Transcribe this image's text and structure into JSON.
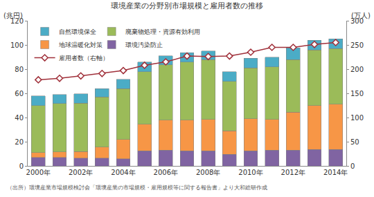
{
  "chart_data": {
    "type": "bar",
    "title": "環境産業の分野別市場規模と雇用者数の推移",
    "y_label": "(兆円)",
    "y2_label": "(万人)",
    "annotations": [
      "（出所）環境産業市場規模検討会「環境産業の市場規模・雇用規模等に関する報告書」より大和総研作成"
    ],
    "categories": [
      "2000年",
      null,
      "2002年",
      null,
      "2004年",
      null,
      "2006年",
      null,
      "2008年",
      null,
      "2010年",
      null,
      "2012年",
      null,
      "2014年"
    ],
    "stacked": true,
    "legend": "upper left",
    "grid": false,
    "series": [
      {
        "name": "環境汚染防止",
        "color": "#8064a2",
        "values": [
          7,
          7,
          6.5,
          6.5,
          6,
          12.5,
          13,
          12.5,
          12.5,
          9.5,
          12.5,
          13,
          13,
          13.5,
          13.5
        ]
      },
      {
        "name": "地球温暖化対策",
        "color": "#f79646",
        "values": [
          4,
          4.5,
          5.5,
          9,
          16,
          22,
          25,
          25.5,
          26,
          19.5,
          26.5,
          25.5,
          31.5,
          36.5,
          37.5
        ]
      },
      {
        "name": "廃棄物処理・資源有効利用",
        "color": "#9bbb59",
        "values": [
          39,
          40,
          40,
          41.5,
          42,
          43.5,
          45.5,
          48,
          49.5,
          41,
          42,
          43.5,
          43.5,
          46,
          46
        ]
      },
      {
        "name": "自然環境保全",
        "color": "#4bacc6",
        "values": [
          8,
          7.5,
          7.5,
          7,
          7.5,
          8,
          7.5,
          7.5,
          7,
          8,
          8,
          8,
          9.5,
          8,
          8
        ]
      },
      {
        "name": "雇用者数（右軸）",
        "type": "line",
        "axis": "y2",
        "color": "#a0303a",
        "marker": "diamond",
        "values": [
          178,
          181,
          186,
          191,
          197,
          208,
          215,
          227,
          226,
          227,
          235,
          245,
          245,
          251,
          255
        ]
      }
    ],
    "ylim": [
      0,
      120
    ],
    "yticks": [
      0,
      20,
      40,
      60,
      80,
      100,
      120
    ],
    "y2lim": [
      0,
      300
    ],
    "y2ticks": [
      0,
      50,
      100,
      150,
      200,
      250,
      300
    ]
  }
}
